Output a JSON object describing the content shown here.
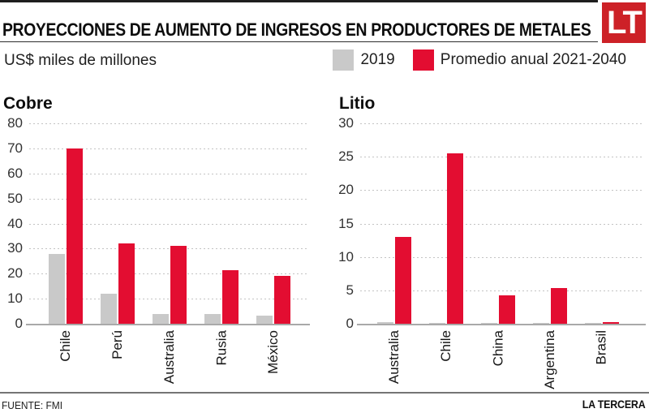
{
  "header": {
    "title": "PROYECCIONES DE AUMENTO DE INGRESOS EN PRODUCTORES DE METALES",
    "logo_text": "LT",
    "unit_label": "US$ miles de millones",
    "legend": [
      {
        "label": "2019",
        "color": "#c9c9c9"
      },
      {
        "label": "Promedio anual 2021-2040",
        "color": "#e30d31"
      }
    ]
  },
  "chart_data": [
    {
      "type": "bar",
      "title": "Cobre",
      "categories": [
        "Chile",
        "Perú",
        "Australia",
        "Rusia",
        "México"
      ],
      "series": [
        {
          "name": "2019",
          "color": "#c9c9c9",
          "values": [
            28,
            12,
            4,
            3.8,
            3.2
          ]
        },
        {
          "name": "Promedio anual 2021-2040",
          "color": "#e30d31",
          "values": [
            70,
            32,
            31,
            21.5,
            19
          ]
        }
      ],
      "xlabel": "",
      "ylabel": "US$ miles de millones",
      "ylim": [
        0,
        80
      ],
      "ytick_step": 10,
      "grid": "horizontal-dotted",
      "legend_position": "top"
    },
    {
      "type": "bar",
      "title": "Litio",
      "categories": [
        "Australia",
        "Chile",
        "China",
        "Argentina",
        "Brasil"
      ],
      "series": [
        {
          "name": "2019",
          "color": "#c9c9c9",
          "values": [
            0.3,
            0.15,
            0.1,
            0.1,
            0.05
          ]
        },
        {
          "name": "Promedio anual 2021-2040",
          "color": "#e30d31",
          "values": [
            13,
            25.5,
            4.2,
            5.3,
            0.3
          ]
        }
      ],
      "xlabel": "",
      "ylabel": "US$ miles de millones",
      "ylim": [
        0,
        30
      ],
      "ytick_step": 5,
      "grid": "horizontal-dotted",
      "legend_position": "top"
    }
  ],
  "footer": {
    "source": "FUENTE: FMI",
    "brand": "LA TERCERA"
  },
  "colors": {
    "accent_red": "#e30d31",
    "bar_gray": "#c9c9c9",
    "logo_red": "#cd2127",
    "grid_line": "#c3c3c3",
    "axis_line": "#a9a9a9",
    "rule_dark": "#2e2e2e",
    "rule_footer": "#757575"
  }
}
